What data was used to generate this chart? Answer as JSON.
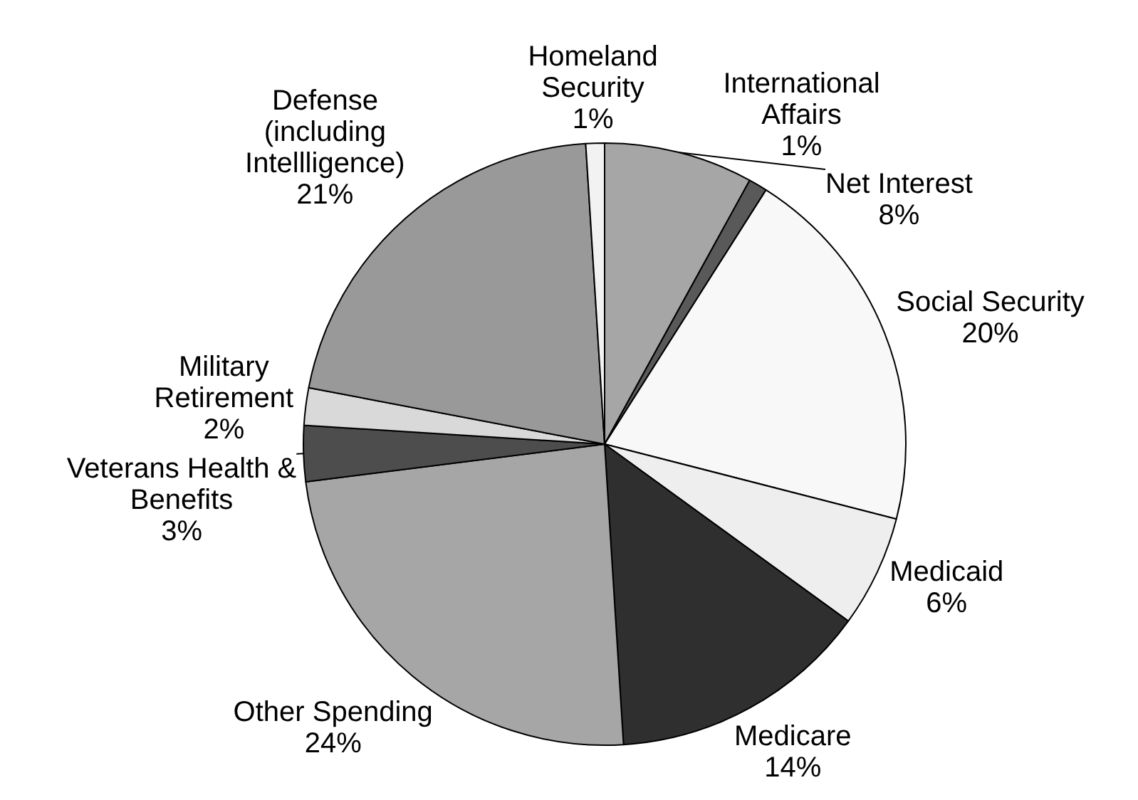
{
  "chart_data": {
    "type": "pie",
    "categories": [
      "Net Interest",
      "International\nAffairs",
      "Social Security",
      "Medicaid",
      "Medicare",
      "Other Spending",
      "Veterans Health &\nBenefits",
      "Military\nRetirement",
      "Defense\n(including\nIntellligence)",
      "Homeland\nSecurity"
    ],
    "values": [
      8,
      1,
      20,
      6,
      14,
      24,
      3,
      2,
      21,
      1
    ],
    "value_labels": [
      "8%",
      "1%",
      "20%",
      "6%",
      "14%",
      "24%",
      "3%",
      "2%",
      "21%",
      "1%"
    ],
    "colors": [
      "#a6a6a6",
      "#595959",
      "#f8f8f8",
      "#eeeeee",
      "#2f2f2f",
      "#a6a6a6",
      "#4d4d4d",
      "#d9d9d9",
      "#999999",
      "#f2f2f2"
    ],
    "legend": false
  }
}
